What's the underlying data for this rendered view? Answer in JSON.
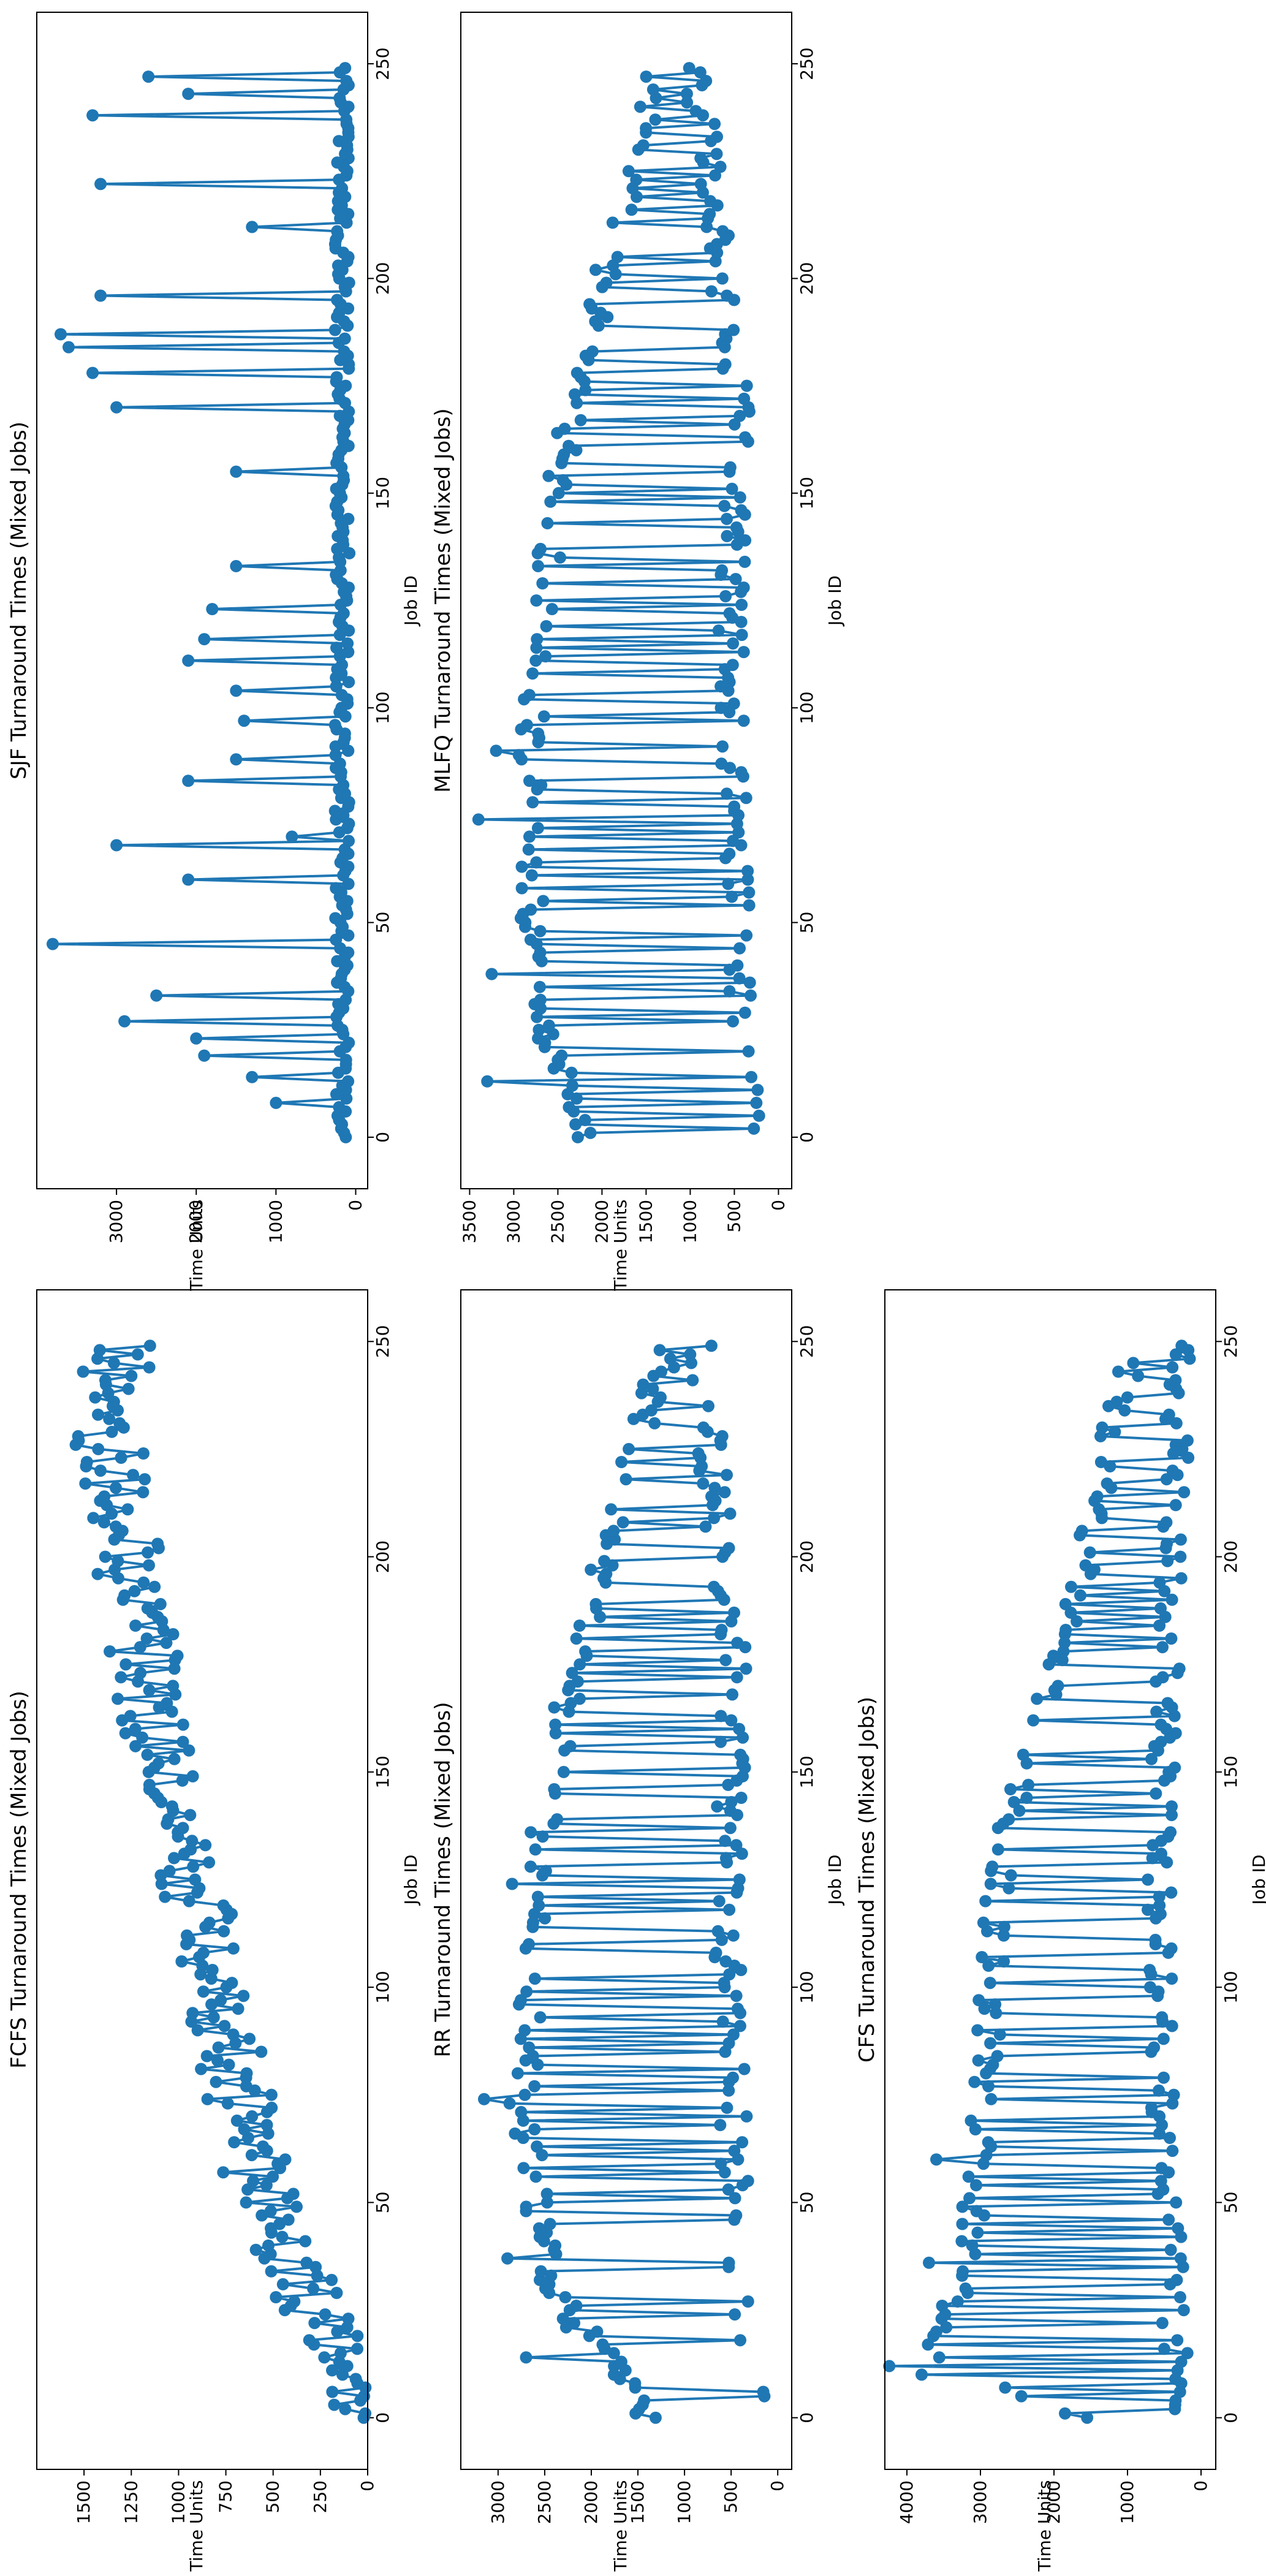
{
  "figure": {
    "orientation": "rotated 90 degrees counter-clockwise",
    "line_color": "#1f77b4",
    "background": "#ffffff"
  },
  "chart_data": [
    {
      "id": "fcfs",
      "type": "line",
      "marker": "circle",
      "title": "FCFS Turnaround Times (Mixed Jobs)",
      "xlabel": "Job ID",
      "ylabel": "Time Units",
      "xlim": [
        -12,
        262
      ],
      "ylim": [
        0,
        1750
      ],
      "xticks": [
        0,
        50,
        100,
        150,
        200,
        250
      ],
      "yticks": [
        0,
        250,
        500,
        750,
        1000,
        1250,
        1500
      ],
      "series": [
        {
          "name": "FCFS",
          "trend": [
            [
              0,
              20
            ],
            [
              50,
              550
            ],
            [
              110,
              860
            ],
            [
              150,
              1080
            ],
            [
              200,
              1270
            ],
            [
              230,
              1380
            ],
            [
              250,
              1300
            ]
          ],
          "noise": 180,
          "seed": 11
        }
      ]
    },
    {
      "id": "sjf",
      "type": "line",
      "marker": "circle",
      "title": "SJF Turnaround Times (Mixed Jobs)",
      "xlabel": "Job ID",
      "ylabel": "Time Units",
      "xlim": [
        -12,
        262
      ],
      "ylim": [
        -150,
        4000
      ],
      "xticks": [
        0,
        50,
        100,
        150,
        200,
        250
      ],
      "yticks": [
        0,
        1000,
        2000,
        3000
      ],
      "series": [
        {
          "name": "SJF",
          "base": 80,
          "base_noise": 180,
          "seed": 23,
          "peaks": [
            [
              8,
              1000
            ],
            [
              14,
              1300
            ],
            [
              19,
              1900
            ],
            [
              23,
              2000
            ],
            [
              27,
              2900
            ],
            [
              33,
              2500
            ],
            [
              45,
              3800
            ],
            [
              60,
              2100
            ],
            [
              68,
              3000
            ],
            [
              70,
              800
            ],
            [
              83,
              2100
            ],
            [
              88,
              1500
            ],
            [
              97,
              1400
            ],
            [
              104,
              1500
            ],
            [
              111,
              2100
            ],
            [
              116,
              1900
            ],
            [
              123,
              1800
            ],
            [
              133,
              1500
            ],
            [
              155,
              1500
            ],
            [
              170,
              3000
            ],
            [
              178,
              3300
            ],
            [
              184,
              3600
            ],
            [
              187,
              3700
            ],
            [
              196,
              3200
            ],
            [
              212,
              1300
            ],
            [
              222,
              3200
            ],
            [
              238,
              3300
            ],
            [
              243,
              2100
            ],
            [
              247,
              2600
            ]
          ]
        }
      ]
    },
    {
      "id": "rr",
      "type": "line",
      "marker": "circle",
      "title": "RR Turnaround Times (Mixed Jobs)",
      "xlabel": "Job ID",
      "ylabel": "Time Units",
      "xlim": [
        -12,
        262
      ],
      "ylim": [
        -150,
        3400
      ],
      "xticks": [
        0,
        50,
        100,
        150,
        200,
        250
      ],
      "yticks": [
        0,
        500,
        1000,
        1500,
        2000,
        2500,
        3000
      ],
      "series": [
        {
          "name": "RR",
          "alternating": true,
          "high": [
            [
              0,
              1500
            ],
            [
              30,
              2600
            ],
            [
              75,
              2900
            ],
            [
              130,
              2700
            ],
            [
              170,
              2400
            ],
            [
              210,
              1900
            ],
            [
              250,
              1300
            ]
          ],
          "low": [
            [
              0,
              100
            ],
            [
              50,
              300
            ],
            [
              120,
              400
            ],
            [
              170,
              300
            ],
            [
              250,
              700
            ]
          ],
          "noise": 300,
          "seed": 37,
          "spikes": [
            [
              14,
              2700
            ],
            [
              37,
              2900
            ],
            [
              74,
              3150
            ],
            [
              124,
              2850
            ]
          ]
        }
      ]
    },
    {
      "id": "mlfq",
      "type": "line",
      "marker": "circle",
      "title": "MLFQ Turnaround Times (Mixed Jobs)",
      "xlabel": "Job ID",
      "ylabel": "Time Units",
      "xlim": [
        -12,
        262
      ],
      "ylim": [
        -150,
        3600
      ],
      "xticks": [
        0,
        50,
        100,
        150,
        200,
        250
      ],
      "yticks": [
        0,
        500,
        1000,
        1500,
        2000,
        2500,
        3000,
        3500
      ],
      "series": [
        {
          "name": "MLFQ",
          "alternating": true,
          "high": [
            [
              0,
              2300
            ],
            [
              30,
              2900
            ],
            [
              75,
              3000
            ],
            [
              130,
              2800
            ],
            [
              170,
              2500
            ],
            [
              210,
              2000
            ],
            [
              250,
              1500
            ]
          ],
          "low": [
            [
              0,
              200
            ],
            [
              50,
              300
            ],
            [
              120,
              400
            ],
            [
              170,
              300
            ],
            [
              250,
              800
            ]
          ],
          "noise": 300,
          "seed": 53,
          "spikes": [
            [
              13,
              3300
            ],
            [
              38,
              3250
            ],
            [
              74,
              3400
            ],
            [
              90,
              3200
            ]
          ]
        }
      ]
    },
    {
      "id": "cfs",
      "type": "line",
      "marker": "circle",
      "title": "CFS Turnaround Times (Mixed Jobs)",
      "xlabel": "Job ID",
      "ylabel": "Time Units",
      "xlim": [
        -12,
        262
      ],
      "ylim": [
        -200,
        4300
      ],
      "xticks": [
        0,
        50,
        100,
        150,
        200,
        250
      ],
      "yticks": [
        0,
        1000,
        2000,
        3000,
        4000
      ],
      "series": [
        {
          "name": "CFS",
          "alternating": true,
          "high": [
            [
              0,
              1800
            ],
            [
              13,
              3800
            ],
            [
              40,
              3300
            ],
            [
              80,
              3100
            ],
            [
              130,
              2900
            ],
            [
              170,
              2200
            ],
            [
              210,
              1600
            ],
            [
              250,
              1100
            ]
          ],
          "low": [
            [
              0,
              100
            ],
            [
              50,
              300
            ],
            [
              120,
              400
            ],
            [
              170,
              300
            ],
            [
              250,
              100
            ]
          ],
          "noise": 350,
          "seed": 71,
          "spikes": [
            [
              10,
              3800
            ],
            [
              12,
              4300
            ],
            [
              20,
              3600
            ],
            [
              36,
              3700
            ],
            [
              60,
              3600
            ]
          ]
        }
      ]
    }
  ]
}
